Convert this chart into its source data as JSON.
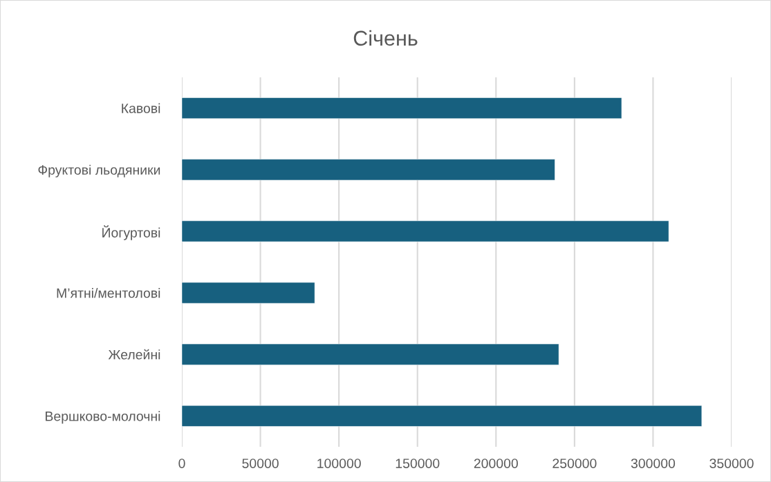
{
  "chart_data": {
    "type": "bar",
    "orientation": "horizontal",
    "title": "Січень",
    "categories": [
      "Кавові",
      "Фруктові льодяники",
      "Йогуртові",
      "М’ятні/ментолові",
      "Желейні",
      "Вершково-молочні"
    ],
    "values": [
      280000,
      237500,
      310000,
      84600,
      240000,
      331000
    ],
    "color": "#17607f",
    "xlim": [
      0,
      350000
    ],
    "xticks": [
      0,
      50000,
      100000,
      150000,
      200000,
      250000,
      300000,
      350000
    ],
    "grid": "x",
    "legend": false
  }
}
